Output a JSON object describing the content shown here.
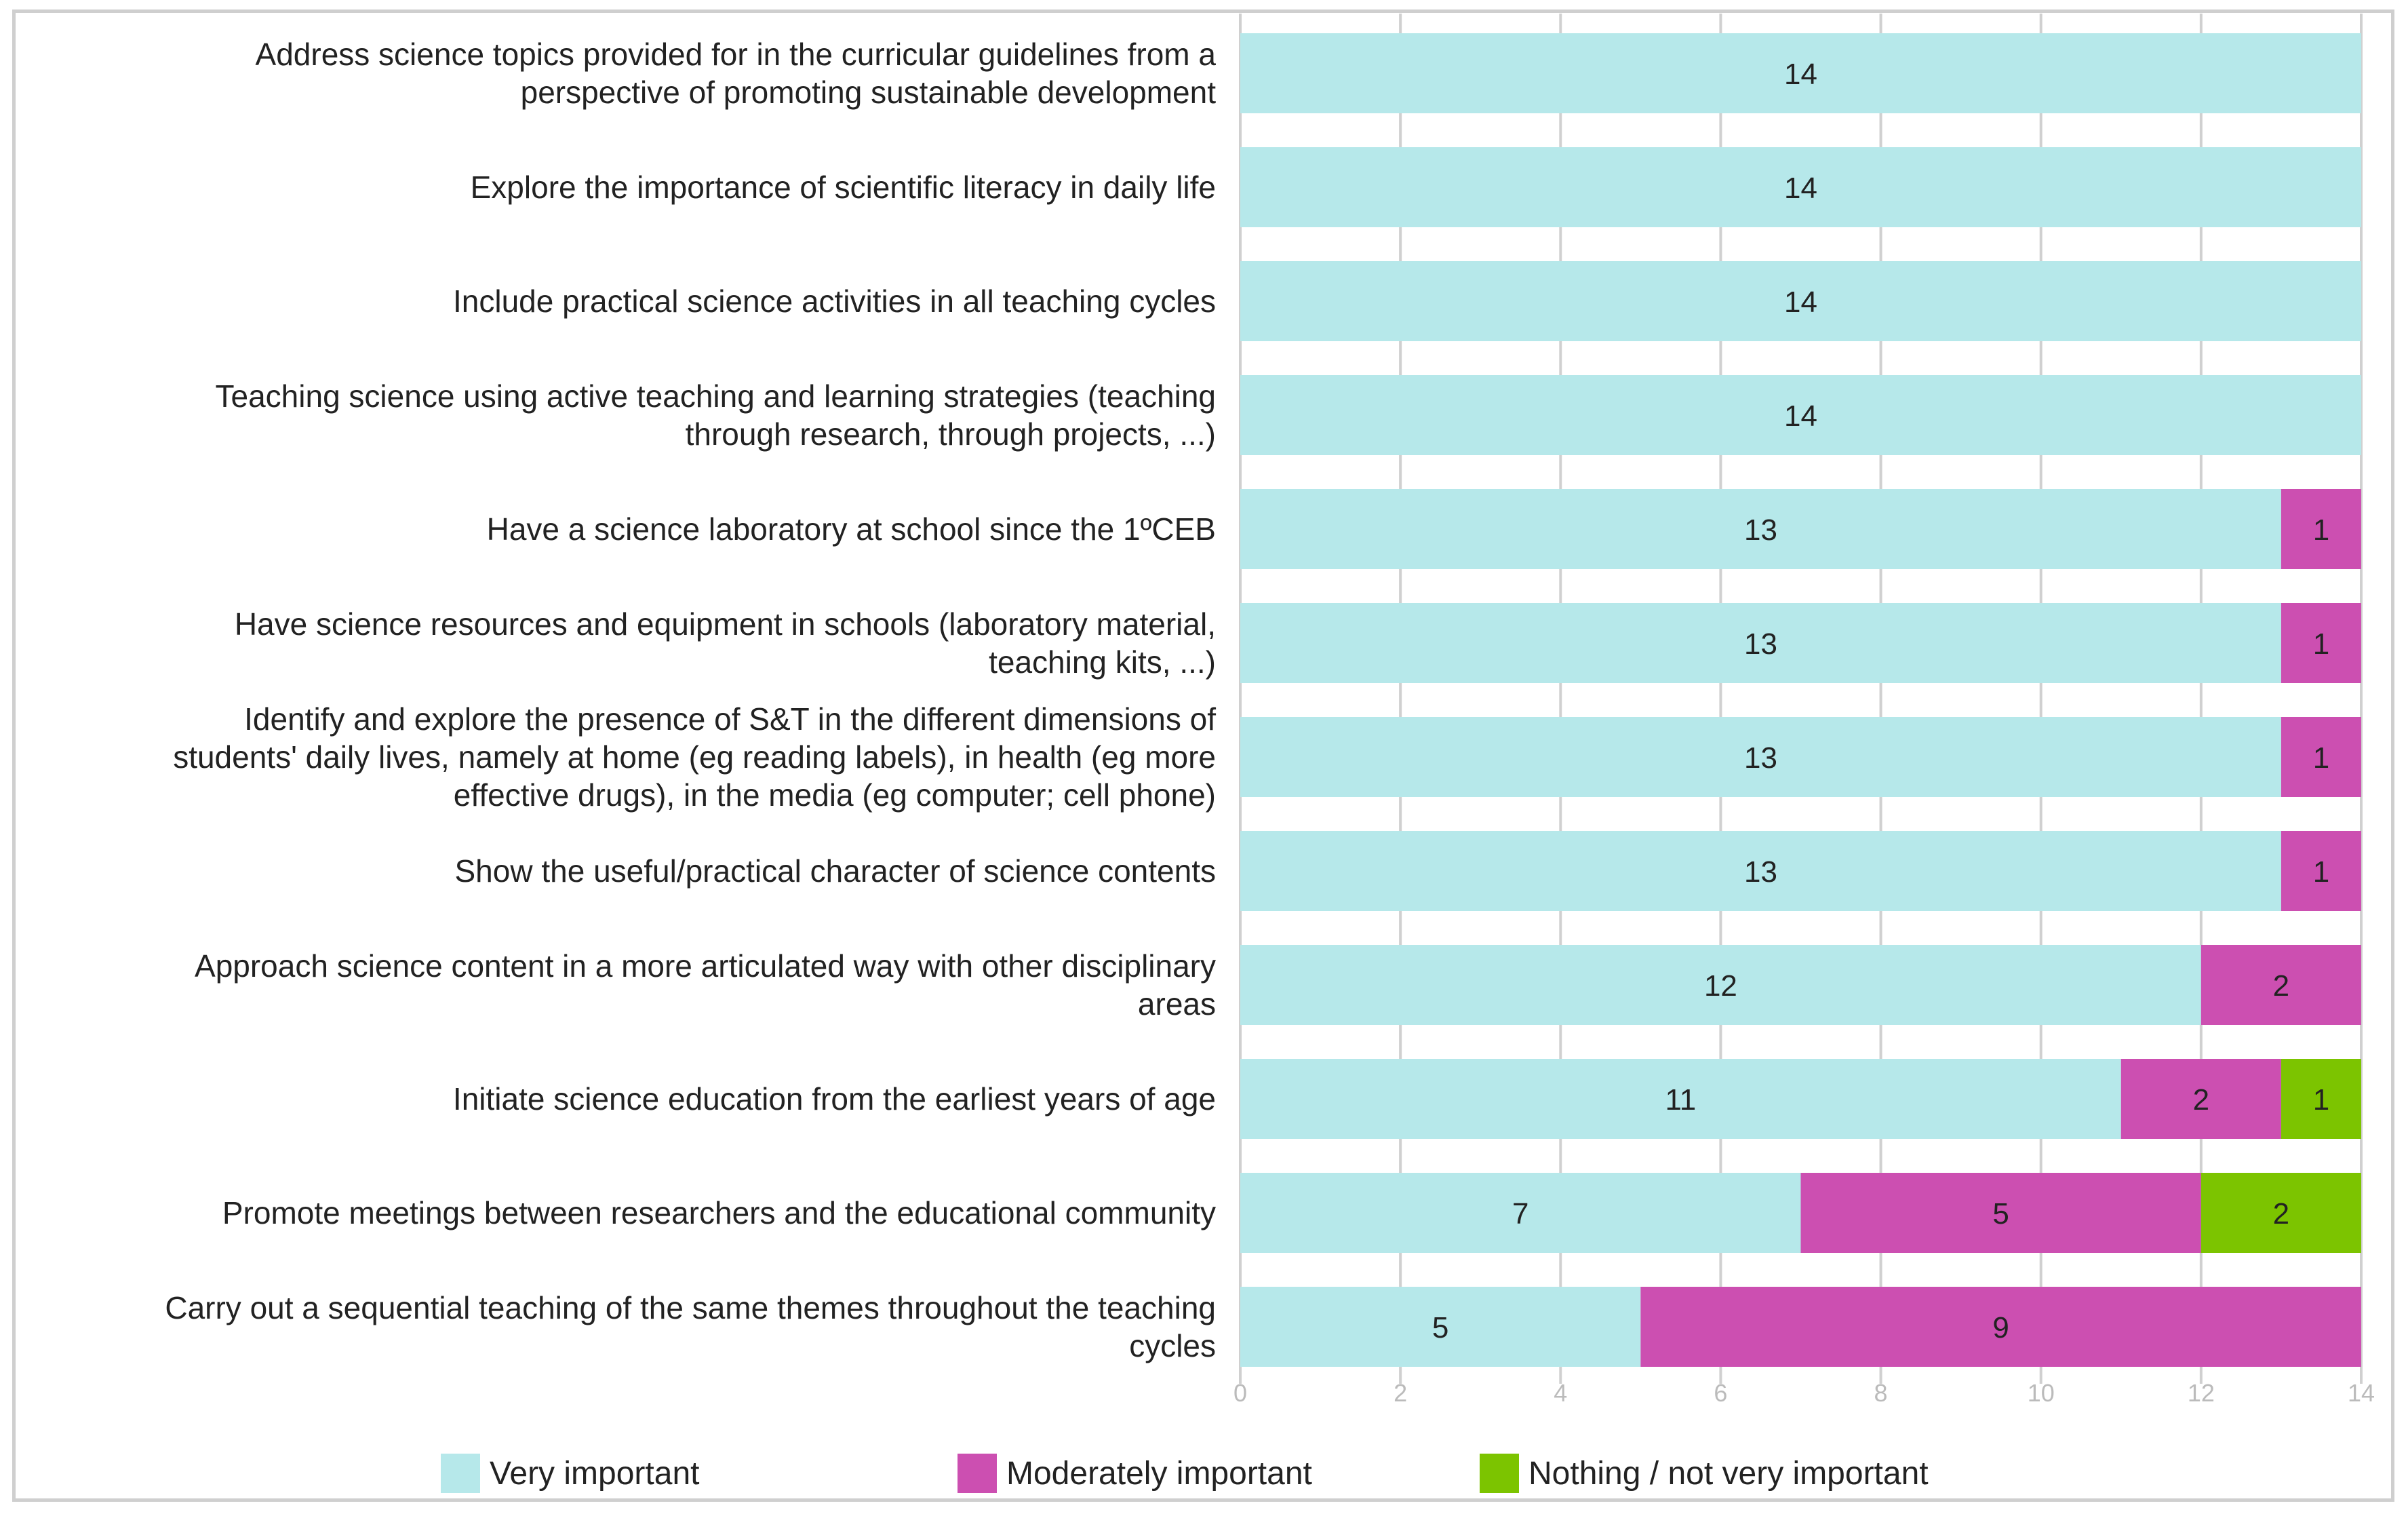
{
  "chart_data": {
    "type": "bar",
    "orientation": "horizontal",
    "stacked": true,
    "title": "",
    "xlabel": "",
    "ylabel": "",
    "xlim": [
      0,
      14
    ],
    "xticks": [
      0,
      2,
      4,
      6,
      8,
      10,
      12,
      14
    ],
    "grid": true,
    "legend_position": "bottom",
    "categories": [
      "Address science topics provided for in the curricular guidelines from a perspective of promoting sustainable development",
      "Explore the importance of scientific literacy in daily life",
      "Include practical science activities in all teaching cycles",
      "Teaching science using active teaching and learning strategies (teaching through research, through projects, ...)",
      "Have a science laboratory at school since the 1ºCEB",
      "Have science resources and equipment in schools (laboratory material, teaching kits, ...)",
      "Identify and explore the presence of S&T in the different dimensions of students' daily lives, namely at home (eg reading labels), in health (eg more effective drugs), in the media (eg computer; cell phone)",
      "Show the useful/practical character of science contents",
      "Approach science content in a more articulated way with other disciplinary areas",
      "Initiate science education from the earliest years of age",
      "Promote meetings between researchers and the educational community",
      "Carry out a sequential teaching of the same themes throughout the teaching cycles"
    ],
    "category_lines": [
      [
        "Address science topics provided for in the curricular guidelines from a",
        "perspective of promoting sustainable development"
      ],
      [
        "Explore the importance of scientific literacy in daily life"
      ],
      [
        "Include practical science activities in all teaching cycles"
      ],
      [
        "Teaching science using active teaching and learning strategies (teaching",
        "through research, through projects, ...)"
      ],
      [
        "Have a science laboratory at school since the 1ºCEB"
      ],
      [
        "Have science resources and equipment in schools (laboratory material,",
        "teaching kits, ...)"
      ],
      [
        "Identify and explore the presence of S&T in the different dimensions of",
        "students' daily lives, namely at home (eg reading labels), in health (eg more",
        "effective drugs), in the media (eg computer; cell phone)"
      ],
      [
        "Show the useful/practical character of science contents"
      ],
      [
        "Approach science content in a more articulated way with other disciplinary",
        "areas"
      ],
      [
        "Initiate science education from the earliest years of age"
      ],
      [
        "Promote meetings between researchers and the educational community"
      ],
      [
        "Carry out a sequential teaching of the same themes throughout the teaching",
        "cycles"
      ]
    ],
    "series": [
      {
        "name": "Very important",
        "color": "#b6e8ea",
        "values": [
          14,
          14,
          14,
          14,
          13,
          13,
          13,
          13,
          12,
          11,
          7,
          5
        ]
      },
      {
        "name": "Moderately important",
        "color": "#cc4fb1",
        "values": [
          0,
          0,
          0,
          0,
          1,
          1,
          1,
          1,
          2,
          2,
          5,
          9
        ]
      },
      {
        "name": "Nothing / not very important",
        "color": "#7cc400",
        "values": [
          0,
          0,
          0,
          0,
          0,
          0,
          0,
          0,
          0,
          1,
          2,
          0
        ]
      }
    ]
  },
  "colors": {
    "gridline": "#d0d0d0",
    "tick_text": "#bbbbbb",
    "label_text": "#222222",
    "border": "#cfcfcf"
  }
}
